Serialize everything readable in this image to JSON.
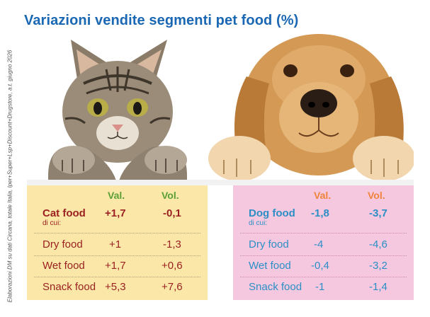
{
  "title": "Variazioni vendite segmenti pet food (%)",
  "source_note": "Elaborazioni DM su dati Circana, totale Italia, Iper+Super+Lsp+Discount+Drugstore, a.t. giugno 2026",
  "colors": {
    "title": "#1a67b3",
    "cat_panel_bg": "#fbe8a8",
    "dog_panel_bg": "#f5c8df",
    "cat_text": "#9b2021",
    "dog_text": "#2b8fc6",
    "cat_header": "#5aa035",
    "dog_header": "#f0843a"
  },
  "chart_data": {
    "type": "table",
    "title": "Variazioni vendite segmenti pet food (%)",
    "columns": [
      "Val.",
      "Vol."
    ],
    "groups": [
      {
        "name": "Cat food",
        "sub_label": "di cui:",
        "total": {
          "val": "+1,7",
          "vol": "-0,1"
        },
        "rows": [
          {
            "name": "Dry food",
            "val": "+1",
            "vol": "-1,3"
          },
          {
            "name": "Wet food",
            "val": "+1,7",
            "vol": "+0,6"
          },
          {
            "name": "Snack food",
            "val": "+5,3",
            "vol": "+7,6"
          }
        ]
      },
      {
        "name": "Dog food",
        "sub_label": "di cui:",
        "total": {
          "val": "-1,8",
          "vol": "-3,7"
        },
        "rows": [
          {
            "name": "Dry food",
            "val": "-4",
            "vol": "-4,6"
          },
          {
            "name": "Wet food",
            "val": "-0,4",
            "vol": "-3,2"
          },
          {
            "name": "Snack food",
            "val": "-1",
            "vol": "-1,4"
          }
        ]
      }
    ]
  }
}
